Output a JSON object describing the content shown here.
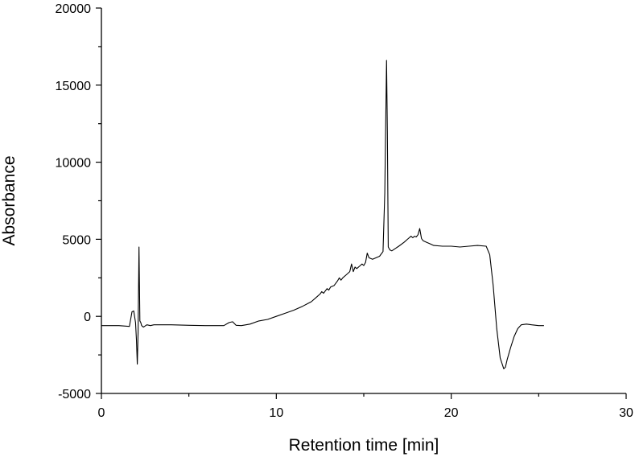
{
  "chart_data": {
    "type": "line",
    "xlabel": "Retention time [min]",
    "ylabel": "Absorbance",
    "xlim": [
      0,
      30
    ],
    "ylim": [
      -5000,
      20000
    ],
    "x_ticks": [
      0,
      10,
      20,
      30
    ],
    "y_ticks": [
      -5000,
      0,
      5000,
      10000,
      15000,
      20000
    ],
    "x_minor_step": 5,
    "y_minor_step": 2500,
    "grid": false,
    "series": [
      {
        "color": "#000000",
        "x": [
          0,
          1.0,
          1.6,
          1.75,
          1.85,
          1.95,
          2.0,
          2.05,
          2.1,
          2.15,
          2.2,
          2.25,
          2.3,
          2.4,
          2.6,
          2.8,
          3.0,
          3.5,
          4.0,
          5.0,
          6.0,
          7.0,
          7.3,
          7.5,
          7.7,
          8.0,
          8.5,
          9.0,
          9.5,
          10.0,
          10.5,
          11.0,
          11.5,
          12.0,
          12.3,
          12.5,
          12.6,
          12.7,
          12.9,
          13.0,
          13.1,
          13.3,
          13.5,
          13.6,
          13.7,
          13.8,
          14.0,
          14.2,
          14.3,
          14.4,
          14.5,
          14.6,
          14.8,
          14.9,
          15.0,
          15.1,
          15.2,
          15.3,
          15.5,
          15.7,
          15.9,
          16.1,
          16.2,
          16.3,
          16.35,
          16.4,
          16.5,
          16.6,
          16.8,
          17.0,
          17.3,
          17.5,
          17.7,
          17.8,
          17.9,
          18.0,
          18.1,
          18.2,
          18.3,
          18.4,
          18.6,
          18.8,
          19.0,
          19.5,
          20.0,
          20.5,
          21.0,
          21.5,
          22.0,
          22.2,
          22.4,
          22.6,
          22.8,
          23.0,
          23.1,
          23.2,
          23.4,
          23.6,
          23.8,
          24.0,
          24.3,
          24.6,
          25.0,
          25.3
        ],
        "y": [
          -600,
          -600,
          -650,
          300,
          350,
          -400,
          -1500,
          -3100,
          -1000,
          4500,
          -300,
          -400,
          -600,
          -700,
          -550,
          -600,
          -550,
          -550,
          -550,
          -580,
          -600,
          -600,
          -400,
          -350,
          -580,
          -600,
          -500,
          -300,
          -200,
          0,
          200,
          400,
          650,
          950,
          1250,
          1450,
          1600,
          1500,
          1800,
          1700,
          1900,
          2000,
          2300,
          2500,
          2350,
          2500,
          2700,
          2900,
          3400,
          2900,
          3200,
          3100,
          3300,
          3400,
          3300,
          3500,
          4100,
          3800,
          3700,
          3800,
          3900,
          4200,
          8000,
          16600,
          12000,
          4500,
          4300,
          4250,
          4400,
          4550,
          4800,
          5000,
          5200,
          5100,
          5200,
          5150,
          5300,
          5700,
          5050,
          4900,
          4800,
          4700,
          4600,
          4550,
          4550,
          4500,
          4550,
          4600,
          4550,
          4000,
          2000,
          -800,
          -2700,
          -3400,
          -3300,
          -2800,
          -2000,
          -1300,
          -800,
          -550,
          -500,
          -550,
          -600,
          -600
        ]
      }
    ]
  }
}
